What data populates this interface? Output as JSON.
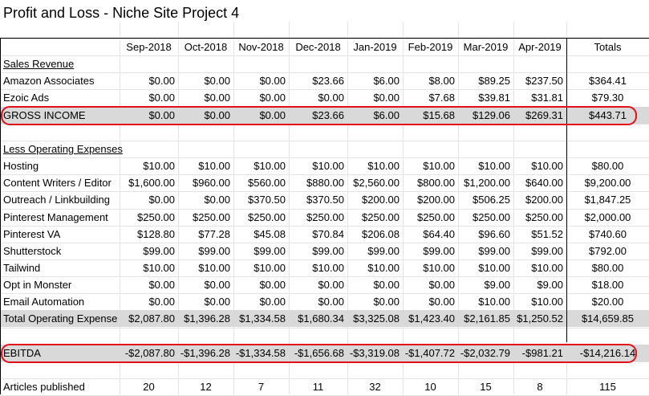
{
  "title": "Profit and Loss - Niche Site Project 4",
  "columns": [
    "Sep-2018",
    "Oct-2018",
    "Nov-2018",
    "Dec-2018",
    "Jan-2019",
    "Feb-2019",
    "Mar-2019",
    "Apr-2019",
    "Totals"
  ],
  "rows": [
    {
      "label": "Sales Revenue",
      "kind": "section",
      "values": []
    },
    {
      "label": "Amazon Associates",
      "kind": "item",
      "values": [
        "$0.00",
        "$0.00",
        "$0.00",
        "$23.66",
        "$6.00",
        "$8.00",
        "$89.25",
        "$237.50",
        "$364.41"
      ]
    },
    {
      "label": "Ezoic Ads",
      "kind": "item",
      "values": [
        "$0.00",
        "$0.00",
        "$0.00",
        "$0.00",
        "$0.00",
        "$7.68",
        "$39.81",
        "$31.81",
        "$79.30"
      ]
    },
    {
      "label": "GROSS INCOME",
      "kind": "total",
      "values": [
        "$0.00",
        "$0.00",
        "$0.00",
        "$23.66",
        "$6.00",
        "$15.68",
        "$129.06",
        "$269.31",
        "$443.71"
      ]
    },
    {
      "label": "",
      "kind": "blank",
      "values": []
    },
    {
      "label": "Less Operating Expenses",
      "kind": "section",
      "values": []
    },
    {
      "label": "Hosting",
      "kind": "item",
      "values": [
        "$10.00",
        "$10.00",
        "$10.00",
        "$10.00",
        "$10.00",
        "$10.00",
        "$10.00",
        "$10.00",
        "$80.00"
      ]
    },
    {
      "label": "Content Writers / Editor",
      "kind": "item",
      "values": [
        "$1,600.00",
        "$960.00",
        "$560.00",
        "$880.00",
        "$2,560.00",
        "$800.00",
        "$1,200.00",
        "$640.00",
        "$9,200.00"
      ]
    },
    {
      "label": "Outreach / Linkbuilding",
      "kind": "item",
      "values": [
        "$0.00",
        "$0.00",
        "$370.50",
        "$370.50",
        "$200.00",
        "$200.00",
        "$506.25",
        "$200.00",
        "$1,847.25"
      ]
    },
    {
      "label": "Pinterest Management",
      "kind": "item",
      "values": [
        "$250.00",
        "$250.00",
        "$250.00",
        "$250.00",
        "$250.00",
        "$250.00",
        "$250.00",
        "$250.00",
        "$2,000.00"
      ]
    },
    {
      "label": "Pinterest VA",
      "kind": "item",
      "values": [
        "$128.80",
        "$77.28",
        "$45.08",
        "$70.84",
        "$206.08",
        "$64.40",
        "$96.60",
        "$51.52",
        "$740.60"
      ]
    },
    {
      "label": "Shutterstock",
      "kind": "item",
      "values": [
        "$99.00",
        "$99.00",
        "$99.00",
        "$99.00",
        "$99.00",
        "$99.00",
        "$99.00",
        "$99.00",
        "$792.00"
      ]
    },
    {
      "label": "Tailwind",
      "kind": "item",
      "values": [
        "$10.00",
        "$10.00",
        "$10.00",
        "$10.00",
        "$10.00",
        "$10.00",
        "$10.00",
        "$10.00",
        "$80.00"
      ]
    },
    {
      "label": "Opt in Monster",
      "kind": "item",
      "values": [
        "$0.00",
        "$0.00",
        "$0.00",
        "$0.00",
        "$0.00",
        "$0.00",
        "$9.00",
        "$9.00",
        "$18.00"
      ]
    },
    {
      "label": "Email Automation",
      "kind": "item",
      "values": [
        "$0.00",
        "$0.00",
        "$0.00",
        "$0.00",
        "$0.00",
        "$0.00",
        "$10.00",
        "$10.00",
        "$20.00"
      ]
    },
    {
      "label": "Total Operating Expense",
      "kind": "total",
      "values": [
        "$2,087.80",
        "$1,396.28",
        "$1,334.58",
        "$1,680.34",
        "$3,325.08",
        "$1,423.40",
        "$2,161.85",
        "$1,250.52",
        "$14,659.85"
      ]
    },
    {
      "label": "",
      "kind": "blank",
      "values": []
    },
    {
      "label": "EBITDA",
      "kind": "total",
      "values": [
        "-$2,087.80",
        "-$1,396.28",
        "-$1,334.58",
        "-$1,656.68",
        "-$3,319.08",
        "-$1,407.72",
        "-$2,032.79",
        "-$981.21",
        "-$14,216.14"
      ]
    },
    {
      "label": "",
      "kind": "blank",
      "values": []
    },
    {
      "label": "Articles published",
      "kind": "count",
      "values": [
        "20",
        "12",
        "7",
        "11",
        "32",
        "10",
        "15",
        "8",
        "115"
      ]
    }
  ],
  "highlight_color": "#e0101c",
  "shade_color": "#d9d9d9"
}
